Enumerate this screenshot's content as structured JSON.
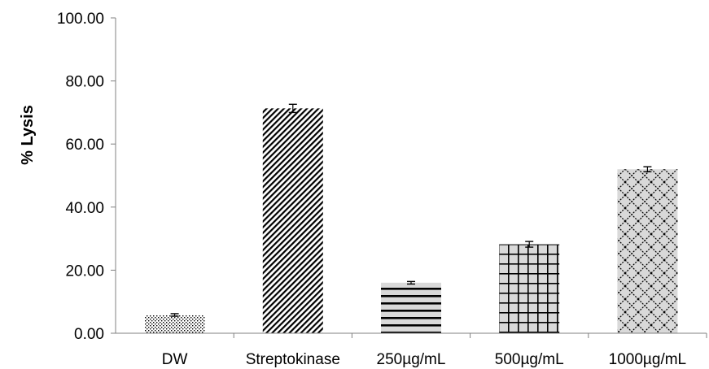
{
  "chart_data": {
    "type": "bar",
    "title": "",
    "xlabel": "",
    "ylabel": "% Lysis",
    "ylim": [
      0,
      100
    ],
    "yticks": [
      "0.00",
      "20.00",
      "40.00",
      "60.00",
      "80.00",
      "100.00"
    ],
    "grid": false,
    "legend": "none",
    "categories": [
      "DW",
      "Streptokinase",
      "250µg/mL",
      "500µg/mL",
      "1000µg/mL"
    ],
    "values": [
      5.8,
      71.3,
      16.0,
      28.2,
      52.0
    ],
    "errors": [
      0.4,
      1.3,
      0.4,
      0.9,
      0.8
    ],
    "patterns": [
      "dots",
      "diagonal-dense",
      "horizontal-lines",
      "grid",
      "diamond-lattice"
    ],
    "colors": {
      "bar_fill": "#d9d9d9",
      "pattern": "#000000",
      "axis": "#808080",
      "error_bar": "#000000"
    }
  }
}
